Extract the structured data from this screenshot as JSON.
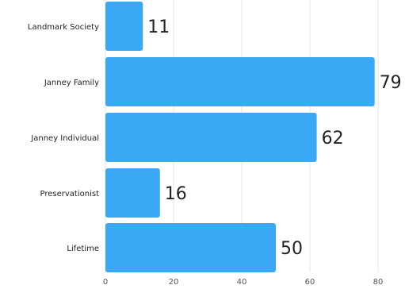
{
  "chart_data": {
    "type": "bar",
    "orientation": "horizontal",
    "categories": [
      "Landmark Society",
      "Janney Family",
      "Janney Individual",
      "Preservationist",
      "Lifetime"
    ],
    "values": [
      11,
      79,
      62,
      16,
      50
    ],
    "xlim": [
      0,
      80
    ],
    "x_ticks": [
      0,
      20,
      40,
      60,
      80
    ],
    "grid": true,
    "legend": "none",
    "colors": {
      "bar": "#3aa8f5"
    }
  }
}
